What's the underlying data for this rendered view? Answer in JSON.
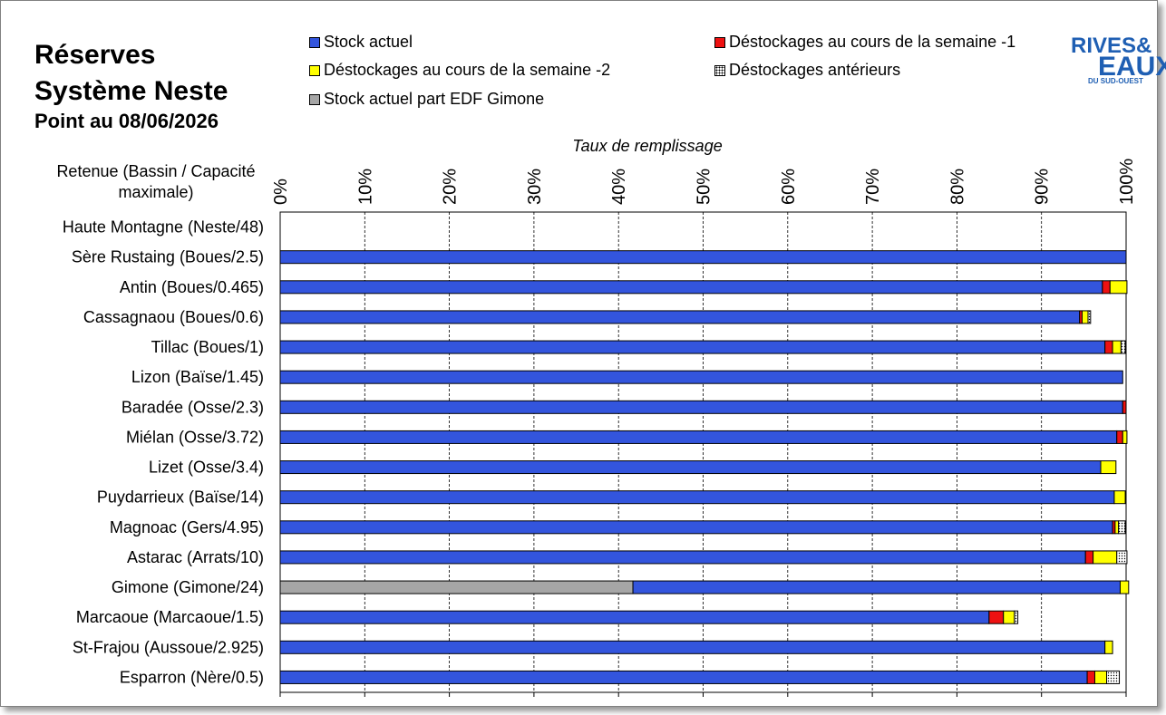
{
  "title": {
    "line1": "Réserves",
    "line2": "Système Neste",
    "line3": "Point au 08/06/2026"
  },
  "logo": {
    "line1": "RIVES&",
    "line2": "EAUX",
    "line3": "DU SUD-OUEST"
  },
  "legend": [
    {
      "label": "Stock actuel",
      "color": "#3355dd"
    },
    {
      "label": "Déstockages au cours de la semaine -1",
      "color": "#ee1111"
    },
    {
      "label": "Déstockages au cours de la semaine -2",
      "color": "#ffff00"
    },
    {
      "label": "Déstockages antérieurs",
      "color": "#ffffff",
      "pattern": "dots"
    },
    {
      "label": "Stock actuel part EDF Gimone",
      "color": "#a6a6a6"
    }
  ],
  "chart_data": {
    "type": "bar",
    "orientation": "horizontal",
    "stacked": true,
    "xlabel": "Taux de remplissage",
    "ylabel": "Retenue (Bassin / Capacité maximale)",
    "xlim": [
      0,
      100
    ],
    "xticks": [
      "0%",
      "10%",
      "20%",
      "30%",
      "40%",
      "50%",
      "60%",
      "70%",
      "80%",
      "90%",
      "100%"
    ],
    "grid": "vertical-dashed",
    "categories": [
      "Haute Montagne (Neste/48)",
      "Sère Rustaing (Boues/2.5)",
      "Antin (Boues/0.465)",
      "Cassagnaou (Boues/0.6)",
      "Tillac (Boues/1)",
      "Lizon (Baïse/1.45)",
      "Baradée (Osse/2.3)",
      "Miélan (Osse/3.72)",
      "Lizet (Osse/3.4)",
      "Puydarrieux (Baïse/14)",
      "Magnoac (Gers/4.95)",
      "Astarac (Arrats/10)",
      "Gimone (Gimone/24)",
      "Marcaoue (Marcaoue/1.5)",
      "St-Frajou (Aussoue/2.925)",
      "Esparron (Nère/0.5)"
    ],
    "series": [
      {
        "name": "Stock actuel part EDF Gimone",
        "color": "#a6a6a6",
        "values": [
          0,
          0,
          0,
          0,
          0,
          0,
          0,
          0,
          0,
          0,
          0,
          0,
          41.7,
          0,
          0,
          0
        ]
      },
      {
        "name": "Stock actuel",
        "color": "#3355dd",
        "values": [
          0,
          100,
          97.2,
          94.5,
          97.5,
          99.6,
          99.6,
          98.9,
          97.0,
          98.6,
          98.4,
          95.2,
          57.6,
          83.8,
          97.5,
          95.4
        ]
      },
      {
        "name": "Déstockages au cours de la semaine -1",
        "color": "#ee1111",
        "values": [
          0,
          0,
          0.9,
          0.3,
          0.9,
          0,
          0.4,
          0.7,
          0,
          0,
          0.3,
          0.9,
          0,
          1.7,
          0,
          0.9
        ]
      },
      {
        "name": "Déstockages au cours de la semaine -2",
        "color": "#ffff00",
        "values": [
          0,
          0,
          2.0,
          0.7,
          1.0,
          0,
          0,
          0.5,
          1.8,
          1.3,
          0.4,
          2.8,
          1.0,
          1.3,
          0.9,
          1.4
        ]
      },
      {
        "name": "Déstockages antérieurs",
        "color": "#ffffff",
        "pattern": "dots",
        "values": [
          0,
          0,
          0,
          0.3,
          0.5,
          0,
          0,
          0,
          0,
          0,
          0.8,
          1.2,
          0,
          0.4,
          0,
          1.5
        ]
      }
    ]
  }
}
